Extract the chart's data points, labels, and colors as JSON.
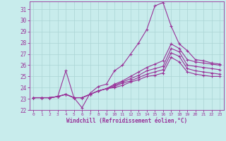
{
  "xlabel": "Windchill (Refroidissement éolien,°C)",
  "ylabel": "",
  "bg_color": "#c8ecec",
  "grid_color": "#aad4d4",
  "line_color": "#993399",
  "xlim": [
    -0.5,
    23.5
  ],
  "ylim": [
    22,
    31.7
  ],
  "xticks": [
    0,
    1,
    2,
    3,
    4,
    5,
    6,
    7,
    8,
    9,
    10,
    11,
    12,
    13,
    14,
    15,
    16,
    17,
    18,
    19,
    20,
    21,
    22,
    23
  ],
  "yticks": [
    22,
    23,
    24,
    25,
    26,
    27,
    28,
    29,
    30,
    31
  ],
  "series": [
    [
      23.1,
      23.1,
      23.1,
      23.2,
      25.5,
      23.1,
      22.2,
      23.5,
      24.1,
      24.3,
      25.5,
      26.0,
      27.0,
      28.0,
      29.2,
      31.3,
      31.6,
      29.5,
      27.9,
      27.3,
      26.5,
      26.4,
      26.2,
      26.1
    ],
    [
      23.1,
      23.1,
      23.1,
      23.2,
      23.4,
      23.1,
      23.1,
      23.4,
      23.7,
      23.9,
      24.3,
      24.6,
      25.0,
      25.4,
      25.8,
      26.1,
      26.4,
      27.9,
      27.5,
      26.5,
      26.3,
      26.2,
      26.1,
      26.0
    ],
    [
      23.1,
      23.1,
      23.1,
      23.2,
      23.4,
      23.1,
      23.1,
      23.4,
      23.7,
      23.9,
      24.2,
      24.5,
      24.8,
      25.1,
      25.5,
      25.7,
      25.9,
      27.5,
      27.2,
      26.0,
      25.9,
      25.8,
      25.7,
      25.6
    ],
    [
      23.1,
      23.1,
      23.1,
      23.2,
      23.4,
      23.1,
      23.1,
      23.4,
      23.7,
      23.9,
      24.1,
      24.4,
      24.6,
      24.9,
      25.2,
      25.4,
      25.6,
      27.1,
      26.8,
      25.7,
      25.5,
      25.4,
      25.3,
      25.2
    ],
    [
      23.1,
      23.1,
      23.1,
      23.2,
      23.4,
      23.1,
      23.1,
      23.4,
      23.7,
      23.9,
      24.0,
      24.2,
      24.5,
      24.7,
      25.0,
      25.1,
      25.3,
      26.7,
      26.3,
      25.4,
      25.2,
      25.1,
      25.0,
      25.0
    ]
  ]
}
